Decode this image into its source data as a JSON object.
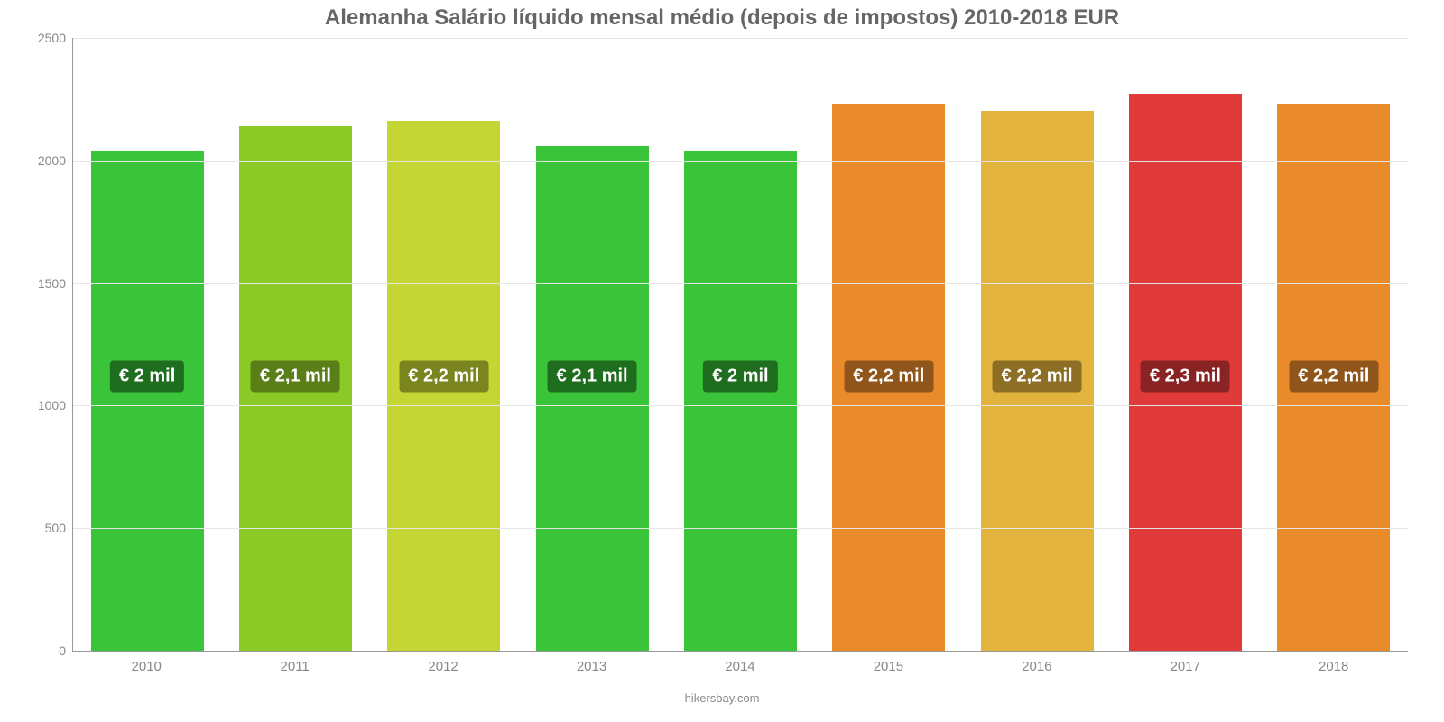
{
  "chart": {
    "type": "bar",
    "title": "Alemanha Salário líquido mensal médio (depois de impostos) 2010-2018 EUR",
    "title_fontsize": 24,
    "title_color": "#666666",
    "source": "hikersbay.com",
    "background_color": "#ffffff",
    "grid_color": "#e6e6e6",
    "axis_color": "#999999",
    "tick_label_color": "#888888",
    "tick_label_fontsize": 14,
    "bar_label_fontsize": 20,
    "bar_label_color": "#ffffff",
    "bar_width": 0.76,
    "ylim": [
      0,
      2500
    ],
    "ytick_step": 500,
    "yticks": [
      0,
      500,
      1000,
      1500,
      2000,
      2500
    ],
    "categories": [
      "2010",
      "2011",
      "2012",
      "2013",
      "2014",
      "2015",
      "2016",
      "2017",
      "2018"
    ],
    "values": [
      2040,
      2140,
      2160,
      2060,
      2040,
      2230,
      2200,
      2270,
      2230
    ],
    "value_labels": [
      "€ 2 mil",
      "€ 2,1 mil",
      "€ 2,2 mil",
      "€ 2,1 mil",
      "€ 2 mil",
      "€ 2,2 mil",
      "€ 2,2 mil",
      "€ 2,3 mil",
      "€ 2,2 mil"
    ],
    "bar_colors": [
      "#3ac43a",
      "#8ac926",
      "#c4d633",
      "#3ac43a",
      "#3ac43a",
      "#e98b2a",
      "#e2b43d",
      "#e03a3a",
      "#e98b2a"
    ],
    "label_bg_colors": [
      "#1f6d1f",
      "#5a7f18",
      "#7a8520",
      "#1f6d1f",
      "#1f6d1f",
      "#8f551a",
      "#8c6f25",
      "#8a2323",
      "#8f551a"
    ],
    "label_y_value": 1120
  }
}
